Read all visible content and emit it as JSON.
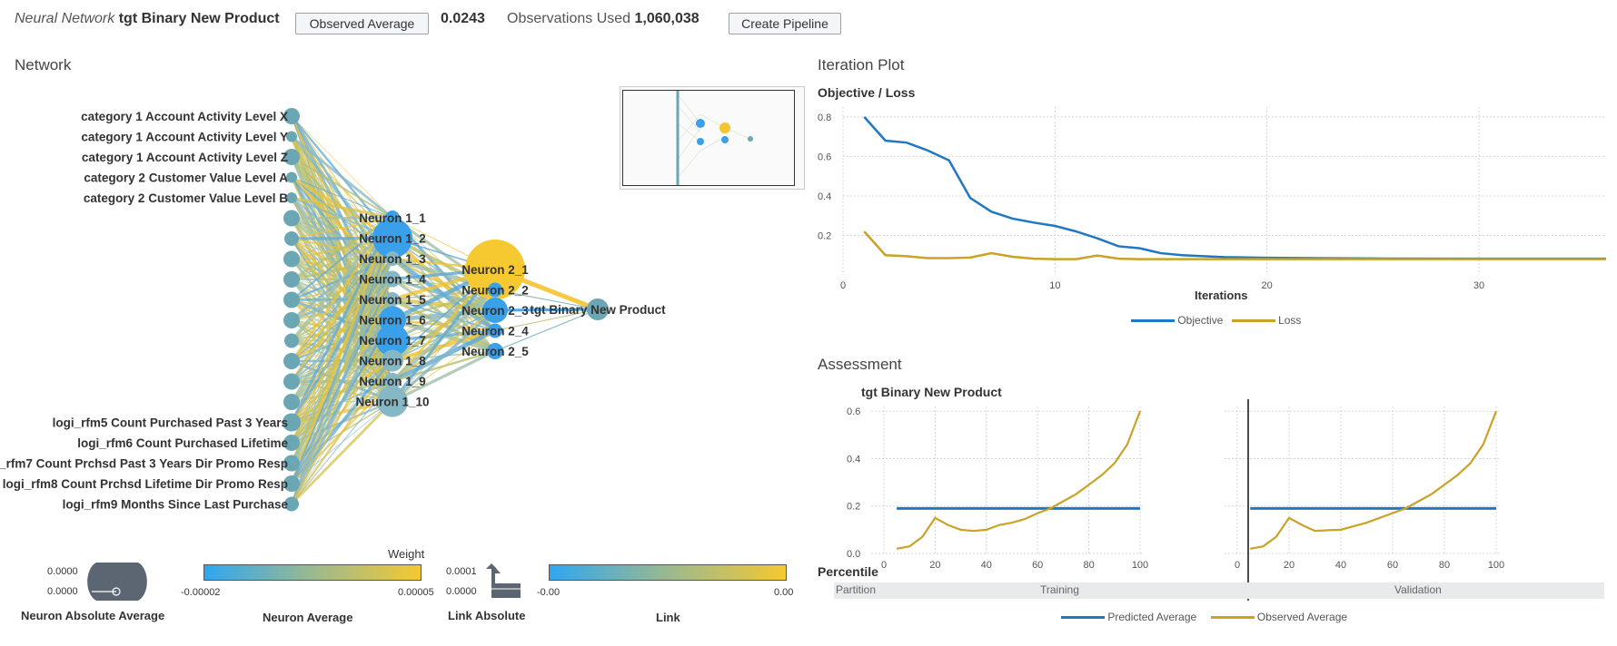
{
  "header": {
    "model_type": "Neural Network",
    "target": "tgt Binary New Product",
    "observed_button": "Observed Average",
    "observed_value": "0.0243",
    "obs_used_label": "Observations Used",
    "obs_used_value": "1,060,038",
    "create_pipeline": "Create Pipeline"
  },
  "network": {
    "title": "Network",
    "inputs": [
      "category 1 Account Activity Level X",
      "category 1 Account Activity Level Y",
      "category 1 Account Activity Level Z",
      "category 2 Customer Value Level A",
      "category 2 Customer Value Level B",
      "",
      "",
      "",
      "",
      "",
      "",
      "",
      "",
      "",
      "",
      "logi_rfm5 Count Purchased Past 3 Years",
      "logi_rfm6 Count Purchased Lifetime",
      "logi_rfm7 Count Prchsd Past 3 Years Dir Promo Resp",
      "logi_rfm8 Count Prchsd Lifetime Dir Promo Resp",
      "logi_rfm9 Months Since Last Purchase"
    ],
    "hidden1": [
      "Neuron 1_1",
      "Neuron 1_2",
      "Neuron 1_3",
      "Neuron 1_4",
      "Neuron 1_5",
      "Neuron 1_6",
      "Neuron 1_7",
      "Neuron 1_8",
      "Neuron 1_9",
      "Neuron 1_10"
    ],
    "hidden2": [
      "Neuron 2_1",
      "Neuron 2_2",
      "Neuron 2_3",
      "Neuron 2_4",
      "Neuron 2_5"
    ],
    "output": "tgt Binary New Product",
    "legend": {
      "neuron_abs_title": "Neuron Absolute Average",
      "neuron_abs_values": [
        "0.0000",
        "0.0000"
      ],
      "neuron_avg_title": "Neuron Average",
      "weight_title": "Weight",
      "neuron_avg_range": [
        "-0.00002",
        "0.00005"
      ],
      "link_abs_title": "Link Absolute",
      "link_abs_values": [
        "0.0001",
        "0.0000"
      ],
      "link_title": "Link",
      "link_range": [
        "-0.00",
        "0.00"
      ]
    }
  },
  "iteration": {
    "section_title": "Iteration Plot",
    "chart_title": "Objective / Loss",
    "xlabel": "Iterations",
    "legend": [
      "Objective",
      "Loss"
    ],
    "colors": {
      "objective": "#1f78c1",
      "loss": "#c9a227"
    }
  },
  "assessment": {
    "section_title": "Assessment",
    "chart_title": "tgt Binary New Product",
    "xlabel": "Percentile",
    "partition_label": "Partition",
    "partitions": [
      "Training",
      "Validation"
    ],
    "legend": [
      "Predicted Average",
      "Observed Average"
    ]
  },
  "chart_data": [
    {
      "type": "line",
      "title": "Objective / Loss",
      "xlabel": "Iterations",
      "ylabel": "",
      "xlim": [
        0,
        36
      ],
      "ylim": [
        0,
        0.85
      ],
      "xticks": [
        0,
        10,
        20,
        30
      ],
      "yticks": [
        0.2,
        0.4,
        0.6,
        0.8
      ],
      "series": [
        {
          "name": "Objective",
          "x": [
            1,
            2,
            3,
            4,
            5,
            6,
            7,
            8,
            9,
            10,
            11,
            12,
            13,
            14,
            15,
            16,
            17,
            18,
            20,
            22,
            25,
            30,
            36
          ],
          "values": [
            0.8,
            0.68,
            0.67,
            0.63,
            0.58,
            0.39,
            0.32,
            0.285,
            0.265,
            0.248,
            0.22,
            0.185,
            0.145,
            0.135,
            0.11,
            0.1,
            0.095,
            0.09,
            0.087,
            0.085,
            0.083,
            0.082,
            0.082
          ]
        },
        {
          "name": "Loss",
          "x": [
            1,
            2,
            3,
            4,
            5,
            6,
            7,
            8,
            9,
            10,
            11,
            12,
            13,
            14,
            15,
            16,
            18,
            20,
            25,
            30,
            36
          ],
          "values": [
            0.22,
            0.1,
            0.095,
            0.085,
            0.085,
            0.088,
            0.11,
            0.092,
            0.082,
            0.08,
            0.08,
            0.098,
            0.082,
            0.08,
            0.08,
            0.08,
            0.08,
            0.08,
            0.08,
            0.08,
            0.08
          ]
        }
      ]
    },
    {
      "type": "line",
      "title": "tgt Binary New Product",
      "xlabel": "Percentile",
      "ylim": [
        0,
        0.62
      ],
      "xlim": [
        0,
        100
      ],
      "yticks": [
        0.0,
        0.2,
        0.4,
        0.6
      ],
      "xticks": [
        0,
        20,
        40,
        60,
        80,
        100
      ],
      "panels": [
        {
          "partition": "Training",
          "series": [
            {
              "name": "Predicted Average",
              "x": [
                5,
                100
              ],
              "values": [
                0.19,
                0.19
              ]
            },
            {
              "name": "Observed Average",
              "x": [
                5,
                10,
                15,
                20,
                25,
                30,
                35,
                40,
                45,
                50,
                55,
                60,
                65,
                70,
                75,
                80,
                85,
                90,
                95,
                100
              ],
              "values": [
                0.02,
                0.03,
                0.07,
                0.15,
                0.12,
                0.1,
                0.095,
                0.1,
                0.12,
                0.13,
                0.145,
                0.17,
                0.19,
                0.22,
                0.25,
                0.29,
                0.33,
                0.38,
                0.46,
                0.6
              ]
            }
          ]
        },
        {
          "partition": "Validation",
          "series": [
            {
              "name": "Predicted Average",
              "x": [
                5,
                100
              ],
              "values": [
                0.19,
                0.19
              ]
            },
            {
              "name": "Observed Average",
              "x": [
                5,
                10,
                15,
                20,
                25,
                30,
                35,
                40,
                45,
                50,
                55,
                60,
                65,
                70,
                75,
                80,
                85,
                90,
                95,
                100
              ],
              "values": [
                0.02,
                0.03,
                0.07,
                0.15,
                0.12,
                0.095,
                0.098,
                0.1,
                0.115,
                0.13,
                0.15,
                0.17,
                0.19,
                0.22,
                0.25,
                0.29,
                0.33,
                0.38,
                0.46,
                0.6
              ]
            }
          ]
        }
      ]
    }
  ]
}
